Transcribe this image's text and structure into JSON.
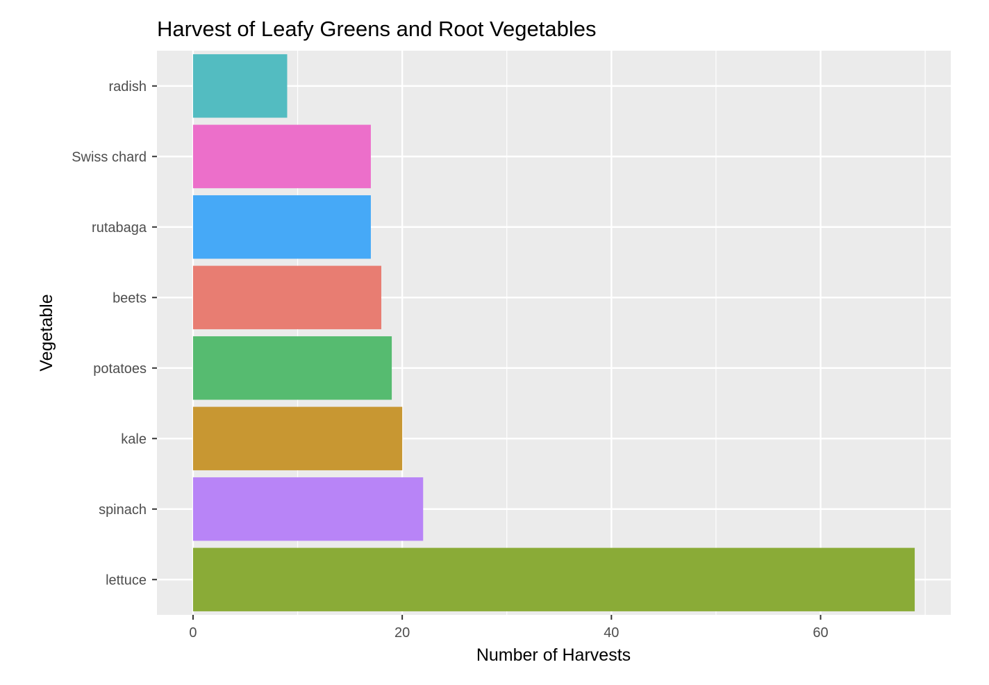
{
  "chart_data": {
    "type": "bar",
    "orientation": "horizontal",
    "title": "Harvest of Leafy Greens and Root Vegetables",
    "xlabel": "Number of Harvests",
    "ylabel": "Vegetable",
    "categories": [
      "radish",
      "Swiss chard",
      "rutabaga",
      "beets",
      "potatoes",
      "kale",
      "spinach",
      "lettuce"
    ],
    "values": [
      9,
      17,
      17,
      18,
      19,
      20,
      22,
      69
    ],
    "colors": [
      "#53bcc1",
      "#ec6fca",
      "#46a9f7",
      "#e87d72",
      "#56bb70",
      "#c89732",
      "#b884f7",
      "#8aab37"
    ],
    "xlim": [
      -3.45,
      72.45
    ],
    "xticks": [
      0,
      20,
      40,
      60
    ],
    "xtick_labels": [
      "0",
      "20",
      "40",
      "60"
    ],
    "grid": true,
    "legend": "none",
    "panel_background": "#ebebeb",
    "grid_color": "#ffffff"
  }
}
